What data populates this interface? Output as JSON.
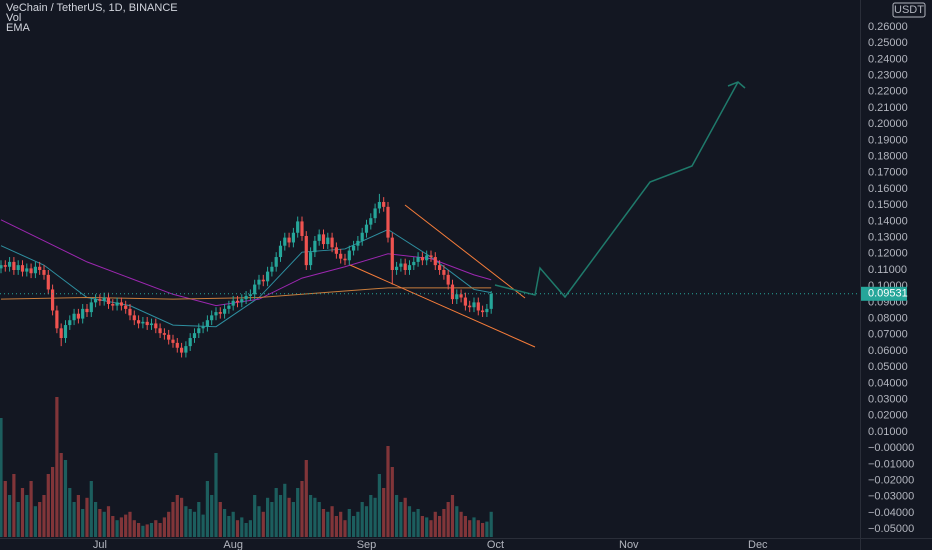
{
  "header": {
    "title": "VeChain / TetherUS, 1D, BINANCE",
    "vol": "Vol",
    "ema": "EMA",
    "unit": "USDT"
  },
  "chart_data": {
    "type": "candlestick",
    "x": [
      0,
      1,
      2,
      3,
      4,
      5,
      6,
      7,
      8,
      9,
      10,
      11,
      12,
      13,
      14,
      15,
      16,
      17,
      18,
      19,
      20,
      21,
      22,
      23,
      24,
      25,
      26,
      27,
      28,
      29,
      30,
      31,
      32,
      33,
      34,
      35,
      36,
      37,
      38,
      39,
      40,
      41,
      42,
      43,
      44,
      45,
      46,
      47,
      48,
      49,
      50,
      51,
      52,
      53,
      54,
      55,
      56,
      57,
      58,
      59,
      60,
      61,
      62,
      63,
      64,
      65,
      66,
      67,
      68,
      69,
      70,
      71,
      72,
      73,
      74,
      75,
      76,
      77,
      78,
      79,
      80,
      81,
      82,
      83,
      84,
      85,
      86,
      87,
      88,
      89,
      90,
      91,
      92,
      93,
      94,
      95,
      96,
      97,
      98,
      99,
      100,
      101,
      102,
      103,
      104,
      105,
      106,
      107,
      108,
      109,
      110,
      111,
      112,
      113,
      114
    ],
    "open": [
      0.111,
      0.113,
      0.112,
      0.115,
      0.11,
      0.113,
      0.109,
      0.111,
      0.108,
      0.112,
      0.11,
      0.107,
      0.098,
      0.085,
      0.074,
      0.068,
      0.076,
      0.079,
      0.083,
      0.08,
      0.086,
      0.084,
      0.09,
      0.092,
      0.091,
      0.093,
      0.089,
      0.088,
      0.09,
      0.088,
      0.086,
      0.082,
      0.079,
      0.077,
      0.078,
      0.076,
      0.077,
      0.074,
      0.071,
      0.07,
      0.067,
      0.065,
      0.062,
      0.059,
      0.063,
      0.068,
      0.071,
      0.074,
      0.075,
      0.079,
      0.082,
      0.084,
      0.083,
      0.086,
      0.088,
      0.091,
      0.09,
      0.092,
      0.094,
      0.095,
      0.101,
      0.104,
      0.103,
      0.109,
      0.112,
      0.118,
      0.125,
      0.13,
      0.127,
      0.133,
      0.14,
      0.131,
      0.113,
      0.121,
      0.128,
      0.132,
      0.126,
      0.13,
      0.124,
      0.12,
      0.117,
      0.116,
      0.122,
      0.125,
      0.128,
      0.133,
      0.138,
      0.142,
      0.148,
      0.152,
      0.149,
      0.13,
      0.11,
      0.112,
      0.114,
      0.11,
      0.113,
      0.115,
      0.118,
      0.116,
      0.119,
      0.118,
      0.113,
      0.11,
      0.107,
      0.101,
      0.092,
      0.095,
      0.093,
      0.088,
      0.087,
      0.09,
      0.085,
      0.084,
      0.086
    ],
    "close": [
      0.113,
      0.112,
      0.115,
      0.11,
      0.113,
      0.109,
      0.111,
      0.108,
      0.112,
      0.11,
      0.107,
      0.098,
      0.085,
      0.074,
      0.068,
      0.076,
      0.079,
      0.083,
      0.08,
      0.086,
      0.084,
      0.09,
      0.092,
      0.091,
      0.093,
      0.089,
      0.088,
      0.09,
      0.088,
      0.086,
      0.082,
      0.079,
      0.077,
      0.078,
      0.076,
      0.077,
      0.074,
      0.071,
      0.07,
      0.067,
      0.065,
      0.062,
      0.059,
      0.063,
      0.068,
      0.071,
      0.074,
      0.075,
      0.079,
      0.082,
      0.084,
      0.083,
      0.086,
      0.088,
      0.091,
      0.09,
      0.092,
      0.094,
      0.095,
      0.101,
      0.104,
      0.103,
      0.109,
      0.112,
      0.118,
      0.125,
      0.13,
      0.127,
      0.133,
      0.14,
      0.131,
      0.113,
      0.121,
      0.128,
      0.132,
      0.126,
      0.13,
      0.124,
      0.12,
      0.117,
      0.116,
      0.122,
      0.125,
      0.128,
      0.133,
      0.138,
      0.142,
      0.148,
      0.152,
      0.149,
      0.13,
      0.11,
      0.112,
      0.114,
      0.11,
      0.113,
      0.115,
      0.118,
      0.116,
      0.119,
      0.118,
      0.113,
      0.11,
      0.107,
      0.101,
      0.092,
      0.095,
      0.093,
      0.088,
      0.087,
      0.09,
      0.085,
      0.084,
      0.086,
      0.09531
    ],
    "high": [
      0.116,
      0.116,
      0.118,
      0.118,
      0.116,
      0.116,
      0.114,
      0.114,
      0.115,
      0.115,
      0.113,
      0.11,
      0.101,
      0.088,
      0.077,
      0.079,
      0.082,
      0.086,
      0.086,
      0.089,
      0.089,
      0.093,
      0.095,
      0.095,
      0.096,
      0.096,
      0.092,
      0.093,
      0.093,
      0.091,
      0.089,
      0.085,
      0.082,
      0.081,
      0.081,
      0.08,
      0.08,
      0.077,
      0.074,
      0.073,
      0.07,
      0.068,
      0.065,
      0.066,
      0.071,
      0.074,
      0.077,
      0.078,
      0.082,
      0.085,
      0.087,
      0.087,
      0.089,
      0.091,
      0.094,
      0.094,
      0.095,
      0.097,
      0.098,
      0.104,
      0.107,
      0.107,
      0.112,
      0.115,
      0.121,
      0.128,
      0.133,
      0.133,
      0.136,
      0.143,
      0.143,
      0.134,
      0.124,
      0.131,
      0.135,
      0.135,
      0.133,
      0.133,
      0.127,
      0.123,
      0.12,
      0.125,
      0.128,
      0.131,
      0.136,
      0.141,
      0.145,
      0.151,
      0.157,
      0.155,
      0.152,
      0.133,
      0.115,
      0.117,
      0.117,
      0.116,
      0.118,
      0.121,
      0.121,
      0.122,
      0.122,
      0.121,
      0.116,
      0.113,
      0.11,
      0.104,
      0.098,
      0.098,
      0.096,
      0.091,
      0.093,
      0.093,
      0.088,
      0.089,
      0.097
    ],
    "low": [
      0.108,
      0.109,
      0.109,
      0.107,
      0.107,
      0.106,
      0.106,
      0.105,
      0.105,
      0.107,
      0.104,
      0.095,
      0.082,
      0.071,
      0.063,
      0.065,
      0.073,
      0.076,
      0.077,
      0.077,
      0.081,
      0.081,
      0.087,
      0.088,
      0.088,
      0.086,
      0.085,
      0.085,
      0.085,
      0.083,
      0.079,
      0.076,
      0.074,
      0.074,
      0.073,
      0.073,
      0.071,
      0.068,
      0.067,
      0.064,
      0.062,
      0.059,
      0.056,
      0.056,
      0.06,
      0.065,
      0.068,
      0.071,
      0.072,
      0.076,
      0.079,
      0.08,
      0.08,
      0.083,
      0.085,
      0.087,
      0.087,
      0.089,
      0.091,
      0.092,
      0.098,
      0.1,
      0.1,
      0.106,
      0.109,
      0.115,
      0.122,
      0.124,
      0.124,
      0.13,
      0.128,
      0.11,
      0.11,
      0.118,
      0.125,
      0.123,
      0.123,
      0.121,
      0.117,
      0.114,
      0.113,
      0.113,
      0.119,
      0.122,
      0.125,
      0.13,
      0.135,
      0.139,
      0.145,
      0.146,
      0.127,
      0.101,
      0.107,
      0.109,
      0.107,
      0.107,
      0.11,
      0.112,
      0.113,
      0.113,
      0.115,
      0.11,
      0.107,
      0.104,
      0.098,
      0.089,
      0.089,
      0.09,
      0.085,
      0.084,
      0.084,
      0.082,
      0.081,
      0.081,
      0.083
    ],
    "volume": [
      85,
      40,
      30,
      45,
      25,
      35,
      30,
      40,
      22,
      25,
      30,
      45,
      50,
      100,
      60,
      55,
      35,
      25,
      30,
      20,
      28,
      40,
      25,
      20,
      18,
      22,
      15,
      12,
      14,
      16,
      18,
      12,
      10,
      8,
      9,
      10,
      12,
      10,
      14,
      18,
      25,
      30,
      28,
      22,
      20,
      18,
      25,
      16,
      40,
      30,
      60,
      25,
      20,
      15,
      18,
      12,
      14,
      10,
      12,
      30,
      22,
      18,
      28,
      25,
      35,
      30,
      38,
      28,
      25,
      35,
      40,
      55,
      30,
      28,
      25,
      20,
      18,
      22,
      15,
      18,
      12,
      20,
      15,
      18,
      25,
      22,
      30,
      28,
      45,
      35,
      65,
      50,
      30,
      25,
      28,
      22,
      18,
      20,
      15,
      14,
      12,
      18,
      15,
      20,
      25,
      30,
      22,
      18,
      15,
      12,
      14,
      12,
      10,
      11,
      18
    ],
    "vlim": [
      0,
      100
    ],
    "up_color": "#26a69a",
    "down_color": "#ef5350",
    "emas": [
      {
        "color": "#2e8fa0",
        "x": [
          0,
          10,
          20,
          30,
          40,
          50,
          60,
          70,
          80,
          90,
          100,
          110,
          114
        ],
        "values": [
          0.125,
          0.113,
          0.093,
          0.088,
          0.076,
          0.075,
          0.093,
          0.121,
          0.123,
          0.135,
          0.118,
          0.098,
          0.096
        ]
      },
      {
        "color": "#9c27b0",
        "x": [
          0,
          10,
          20,
          30,
          40,
          50,
          60,
          70,
          80,
          90,
          100,
          110,
          114
        ],
        "values": [
          0.141,
          0.128,
          0.115,
          0.105,
          0.095,
          0.088,
          0.092,
          0.105,
          0.112,
          0.12,
          0.117,
          0.107,
          0.104
        ]
      },
      {
        "color": "#c77c3c",
        "x": [
          0,
          20,
          40,
          60,
          80,
          90,
          114
        ],
        "values": [
          0.092,
          0.093,
          0.092,
          0.093,
          0.097,
          0.099,
          0.099
        ]
      }
    ],
    "last_price": 0.09531,
    "xlim": [
      -0.23,
      199.77
    ],
    "xticks": [
      {
        "value": 23,
        "label": "Jul"
      },
      {
        "value": 54,
        "label": "Aug"
      },
      {
        "value": 85,
        "label": "Sep"
      },
      {
        "value": 115,
        "label": "Oct"
      },
      {
        "value": 146,
        "label": "Nov"
      },
      {
        "value": 176,
        "label": "Dec"
      }
    ],
    "ylim": [
      -0.0567,
      0.2767
    ],
    "yticks": [
      {
        "value": 0.26,
        "label": "0.26000"
      },
      {
        "value": 0.25,
        "label": "0.25000"
      },
      {
        "value": 0.24,
        "label": "0.24000"
      },
      {
        "value": 0.23,
        "label": "0.23000"
      },
      {
        "value": 0.22,
        "label": "0.22000"
      },
      {
        "value": 0.21,
        "label": "0.21000"
      },
      {
        "value": 0.2,
        "label": "0.20000"
      },
      {
        "value": 0.19,
        "label": "0.19000"
      },
      {
        "value": 0.18,
        "label": "0.18000"
      },
      {
        "value": 0.17,
        "label": "0.17000"
      },
      {
        "value": 0.16,
        "label": "0.16000"
      },
      {
        "value": 0.15,
        "label": "0.15000"
      },
      {
        "value": 0.14,
        "label": "0.14000"
      },
      {
        "value": 0.13,
        "label": "0.13000"
      },
      {
        "value": 0.12,
        "label": "0.12000"
      },
      {
        "value": 0.11,
        "label": "0.11000"
      },
      {
        "value": 0.1,
        "label": "0.10000"
      },
      {
        "value": 0.09,
        "label": "0.09000"
      },
      {
        "value": 0.08,
        "label": "0.08000"
      },
      {
        "value": 0.07,
        "label": "0.07000"
      },
      {
        "value": 0.06,
        "label": "0.06000"
      },
      {
        "value": 0.05,
        "label": "0.05000"
      },
      {
        "value": 0.04,
        "label": "0.04000"
      },
      {
        "value": 0.03,
        "label": "0.03000"
      },
      {
        "value": 0.02,
        "label": "0.02000"
      },
      {
        "value": 0.01,
        "label": "0.01000"
      },
      {
        "value": 0,
        "label": "−0.00000"
      },
      {
        "value": -0.01,
        "label": "−0.01000"
      },
      {
        "value": -0.02,
        "label": "−0.02000"
      },
      {
        "value": -0.03,
        "label": "−0.03000"
      },
      {
        "value": -0.04,
        "label": "−0.04000"
      },
      {
        "value": -0.05,
        "label": "−0.05000"
      }
    ]
  }
}
